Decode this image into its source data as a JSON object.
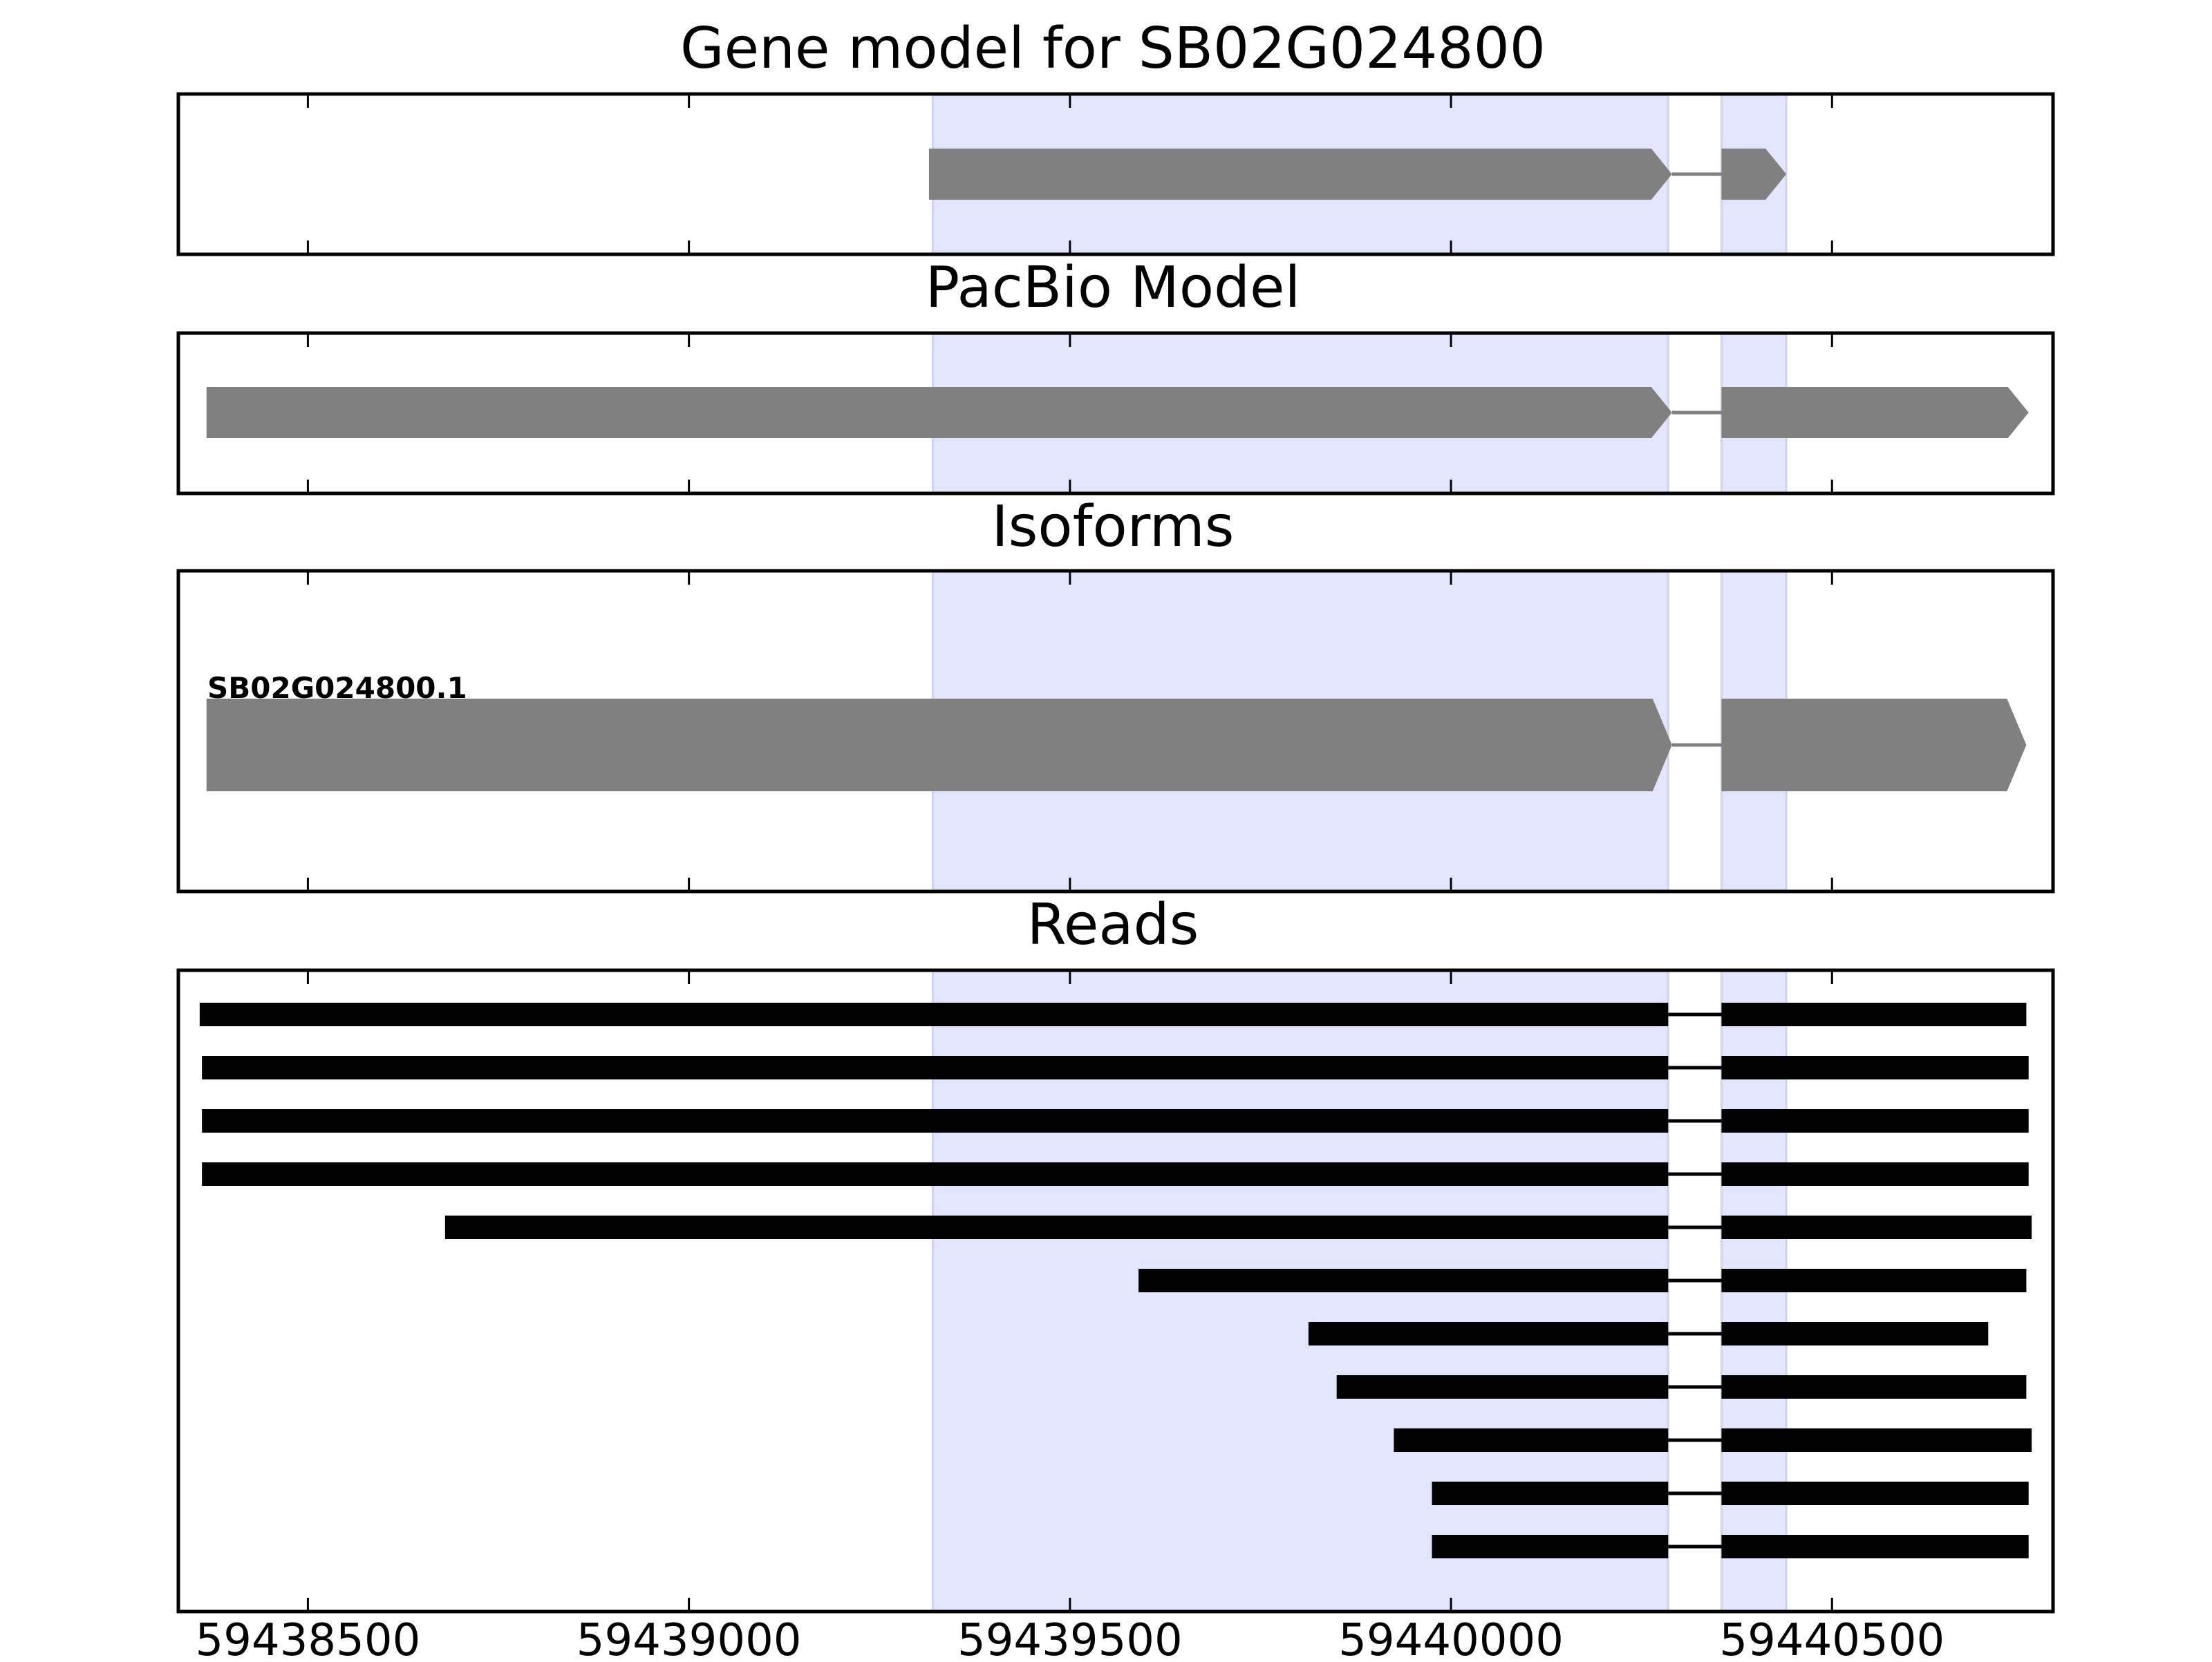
{
  "chart_data": {
    "type": "gene-track",
    "x_range": [
      59438330,
      59440790
    ],
    "x_ticks": [
      59438500,
      59439000,
      59439500,
      59440000,
      59440500
    ],
    "x_tick_labels": [
      "59438500",
      "59439000",
      "59439500",
      "59440000",
      "59440500"
    ],
    "grid": false,
    "colors": {
      "highlight": "#e3e4fd",
      "feature": "#808080",
      "read": "#000000",
      "frame": "#000000"
    },
    "highlight_regions": [
      [
        59439320,
        59440285
      ],
      [
        59440355,
        59440440
      ]
    ],
    "panels": [
      {
        "title": "Gene model for SB02G024800",
        "features": [
          {
            "exons": [
              [
                59439315,
                59440290
              ],
              [
                59440355,
                59440440
              ]
            ],
            "strand": "+"
          }
        ]
      },
      {
        "title": "PacBio Model",
        "features": [
          {
            "exons": [
              [
                59438367,
                59440290
              ],
              [
                59440355,
                59440758
              ]
            ],
            "strand": "+"
          }
        ]
      },
      {
        "title": "Isoforms",
        "features": [
          {
            "label": "SB02G024800.1",
            "exons": [
              [
                59438367,
                59440290
              ],
              [
                59440355,
                59440755
              ]
            ],
            "strand": "+"
          }
        ]
      },
      {
        "title": "Reads",
        "reads": [
          [
            [
              59438358,
              59440285
            ],
            [
              59440355,
              59440755
            ]
          ],
          [
            [
              59438361,
              59440285
            ],
            [
              59440355,
              59440758
            ]
          ],
          [
            [
              59438361,
              59440285
            ],
            [
              59440355,
              59440758
            ]
          ],
          [
            [
              59438361,
              59440285
            ],
            [
              59440355,
              59440758
            ]
          ],
          [
            [
              59438680,
              59440285
            ],
            [
              59440355,
              59440762
            ]
          ],
          [
            [
              59439590,
              59440285
            ],
            [
              59440355,
              59440755
            ]
          ],
          [
            [
              59439813,
              59440285
            ],
            [
              59440355,
              59440705
            ]
          ],
          [
            [
              59439850,
              59440285
            ],
            [
              59440355,
              59440755
            ]
          ],
          [
            [
              59439925,
              59440285
            ],
            [
              59440355,
              59440762
            ]
          ],
          [
            [
              59439975,
              59440285
            ],
            [
              59440355,
              59440758
            ]
          ],
          [
            [
              59439975,
              59440285
            ],
            [
              59440355,
              59440758
            ]
          ]
        ]
      }
    ]
  }
}
